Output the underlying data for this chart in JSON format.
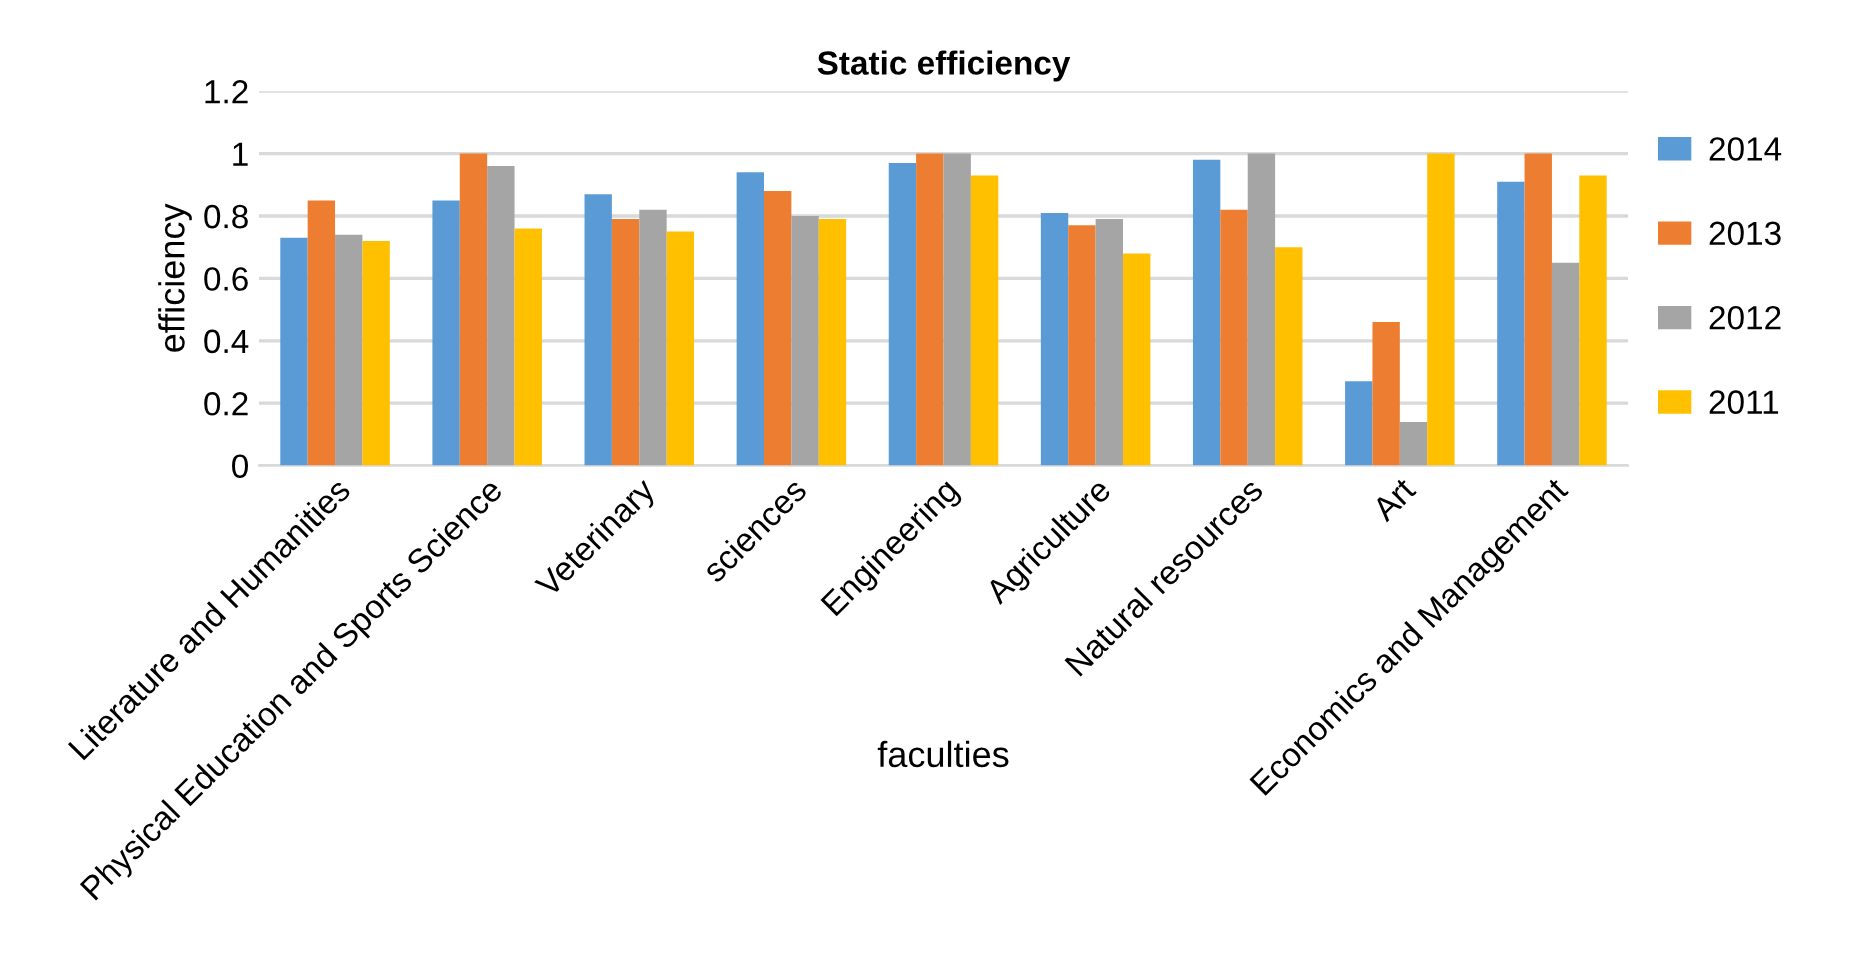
{
  "chart_data": {
    "type": "bar",
    "title": "Static efficiency",
    "xlabel": "faculties",
    "ylabel": "efficiency",
    "categories": [
      "Literature and Humanities",
      "Physical Education and Sports Science",
      "Veterinary",
      "sciences",
      "Engineering",
      "Agriculture",
      "Natural resources",
      "Art",
      "Economics and Management"
    ],
    "series": [
      {
        "name": "2014",
        "color": "#5b9bd5",
        "values": [
          0.73,
          0.85,
          0.87,
          0.94,
          0.97,
          0.81,
          0.98,
          0.27,
          0.91
        ]
      },
      {
        "name": "2013",
        "color": "#ed7d31",
        "values": [
          0.85,
          1,
          0.79,
          0.88,
          1,
          0.77,
          0.82,
          0.46,
          1
        ]
      },
      {
        "name": "2012",
        "color": "#a5a5a5",
        "values": [
          0.74,
          0.96,
          0.82,
          0.8,
          1,
          0.79,
          1,
          0.14,
          0.65
        ]
      },
      {
        "name": "2011",
        "color": "#ffc000",
        "values": [
          0.72,
          0.76,
          0.75,
          0.79,
          0.93,
          0.68,
          0.7,
          1,
          0.93
        ]
      }
    ],
    "ylim": [
      0,
      1.2
    ],
    "yticks": [
      {
        "value": 0,
        "label": "0"
      },
      0.2,
      0.4,
      0.6,
      0.8,
      {
        "value": 1,
        "label": "1"
      },
      1.2
    ],
    "grid": "y",
    "legend": "right"
  }
}
